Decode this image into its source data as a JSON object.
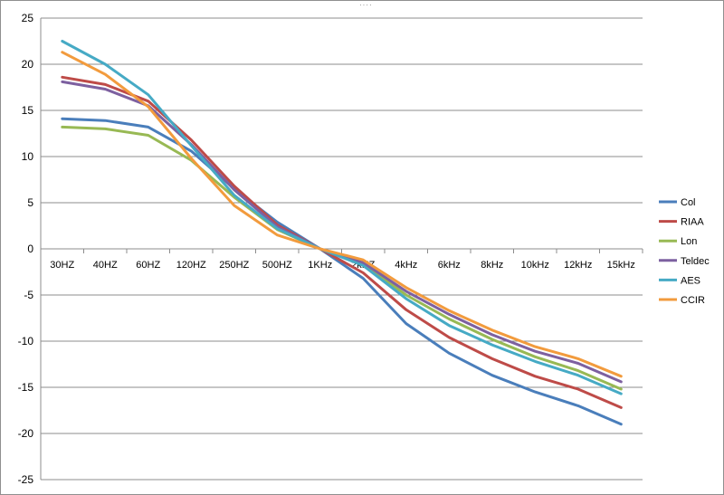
{
  "window": {
    "grip_glyph": "····"
  },
  "chart_data": {
    "type": "line",
    "title": "",
    "xlabel": "",
    "ylabel": "",
    "categories": [
      "30HZ",
      "40HZ",
      "60HZ",
      "120HZ",
      "250HZ",
      "500HZ",
      "1KHz",
      "2kHZ",
      "4kHz",
      "6kHz",
      "8kHz",
      "10kHz",
      "12kHz",
      "15kHz"
    ],
    "ylim": [
      -25,
      25
    ],
    "ytick_step": 5,
    "ytick_labels": [
      "25",
      "20",
      "15",
      "10",
      "5",
      "0",
      "-5",
      "-10",
      "-15",
      "-20",
      "-25"
    ],
    "grid": "horizontal",
    "legend_position": "right",
    "series": [
      {
        "name": "Col",
        "color": "#4A7EBB",
        "values": [
          14.1,
          13.9,
          13.2,
          10.6,
          6.5,
          2.9,
          0,
          -3.2,
          -8.1,
          -11.3,
          -13.7,
          -15.5,
          -17.0,
          -19.0
        ]
      },
      {
        "name": "RIAA",
        "color": "#BE4B48",
        "values": [
          18.6,
          17.8,
          16.0,
          11.8,
          6.8,
          2.6,
          0,
          -2.6,
          -6.6,
          -9.6,
          -11.9,
          -13.8,
          -15.2,
          -17.2
        ]
      },
      {
        "name": "Lon",
        "color": "#98B954",
        "values": [
          13.2,
          13.0,
          12.3,
          9.6,
          5.6,
          2.1,
          0,
          -1.6,
          -5.0,
          -7.6,
          -9.8,
          -11.7,
          -13.2,
          -15.2
        ]
      },
      {
        "name": "Teldec",
        "color": "#7D60A0",
        "values": [
          18.1,
          17.3,
          15.5,
          11.3,
          6.4,
          2.4,
          0,
          -1.5,
          -4.6,
          -7.1,
          -9.3,
          -11.1,
          -12.4,
          -14.4
        ]
      },
      {
        "name": "AES",
        "color": "#46AAC5",
        "values": [
          22.5,
          20.0,
          16.7,
          11.2,
          5.8,
          2.2,
          0,
          -1.8,
          -5.4,
          -8.3,
          -10.4,
          -12.2,
          -13.7,
          -15.7
        ]
      },
      {
        "name": "CCIR",
        "color": "#F29B3D",
        "values": [
          21.3,
          18.9,
          15.4,
          9.8,
          4.7,
          1.5,
          0,
          -1.2,
          -4.2,
          -6.7,
          -8.8,
          -10.6,
          -11.9,
          -13.8
        ]
      }
    ]
  }
}
